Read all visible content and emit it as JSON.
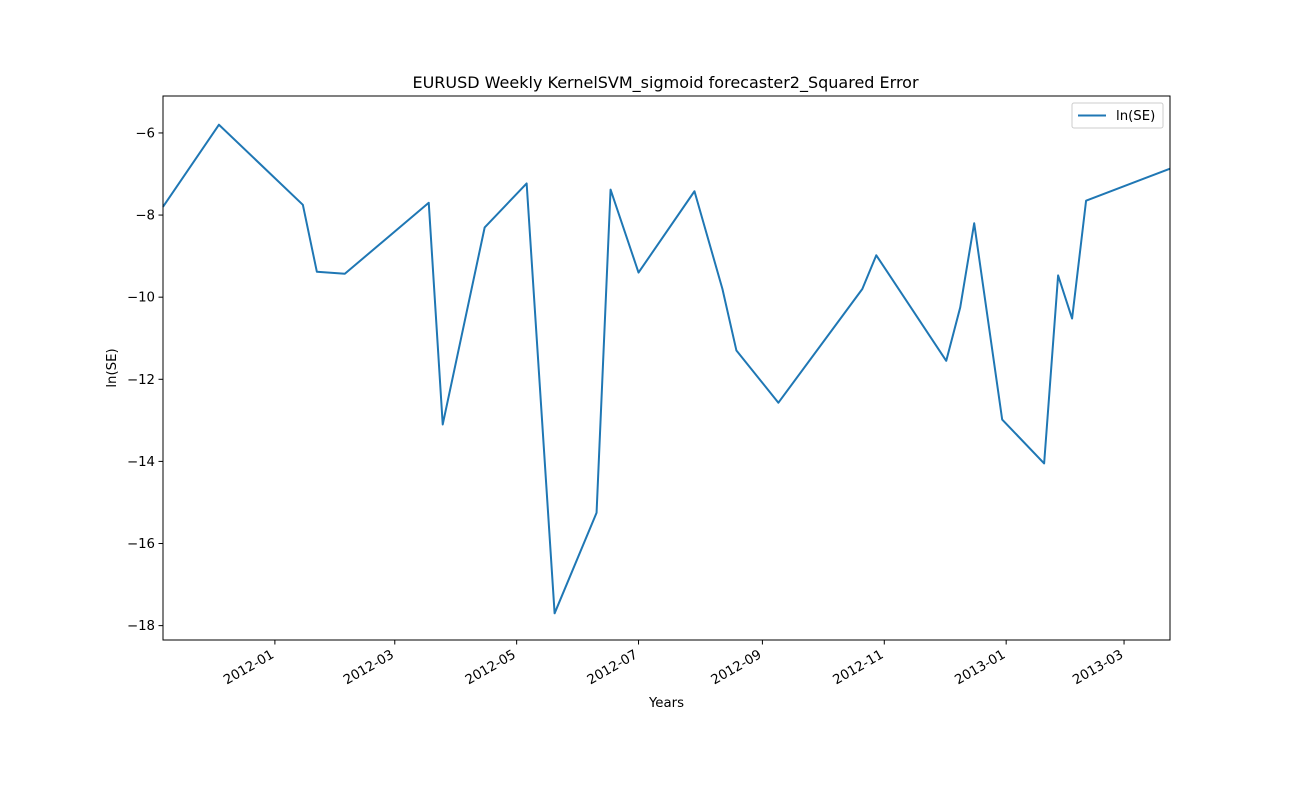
{
  "chart_data": {
    "type": "line",
    "title": "EURUSD Weekly KernelSVM_sigmoid forecaster2_Squared Error",
    "xlabel": "Years",
    "ylabel": "ln(SE)",
    "x_axis_type": "date",
    "xlim": [
      "2011-11-06",
      "2013-03-24"
    ],
    "ylim": [
      -18.35,
      -5.1
    ],
    "grid": false,
    "legend_position": "top-right",
    "x_ticks": [
      "2012-01",
      "2012-03",
      "2012-05",
      "2012-07",
      "2012-09",
      "2012-11",
      "2013-01",
      "2013-03"
    ],
    "y_ticks": [
      -6,
      -8,
      -10,
      -12,
      -14,
      -16,
      -18
    ],
    "series": [
      {
        "name": "ln(SE)",
        "color": "#1f77b4",
        "x": [
          "2011-11-06",
          "2011-12-04",
          "2012-01-15",
          "2012-01-22",
          "2012-02-05",
          "2012-03-18",
          "2012-03-25",
          "2012-04-15",
          "2012-05-06",
          "2012-05-20",
          "2012-06-10",
          "2012-06-17",
          "2012-07-01",
          "2012-07-29",
          "2012-08-12",
          "2012-08-19",
          "2012-09-09",
          "2012-10-21",
          "2012-10-28",
          "2012-12-02",
          "2012-12-09",
          "2012-12-16",
          "2012-12-30",
          "2013-01-20",
          "2013-01-27",
          "2013-02-03",
          "2013-02-10",
          "2013-03-24"
        ],
        "values": [
          -7.8,
          -5.8,
          -7.75,
          -9.38,
          -9.43,
          -7.7,
          -13.1,
          -8.3,
          -7.23,
          -17.7,
          -15.25,
          -7.38,
          -9.4,
          -7.42,
          -9.8,
          -11.3,
          -12.57,
          -9.8,
          -8.98,
          -11.55,
          -10.25,
          -8.2,
          -12.98,
          -14.05,
          -9.47,
          -10.52,
          -7.65,
          -6.87
        ]
      }
    ]
  }
}
